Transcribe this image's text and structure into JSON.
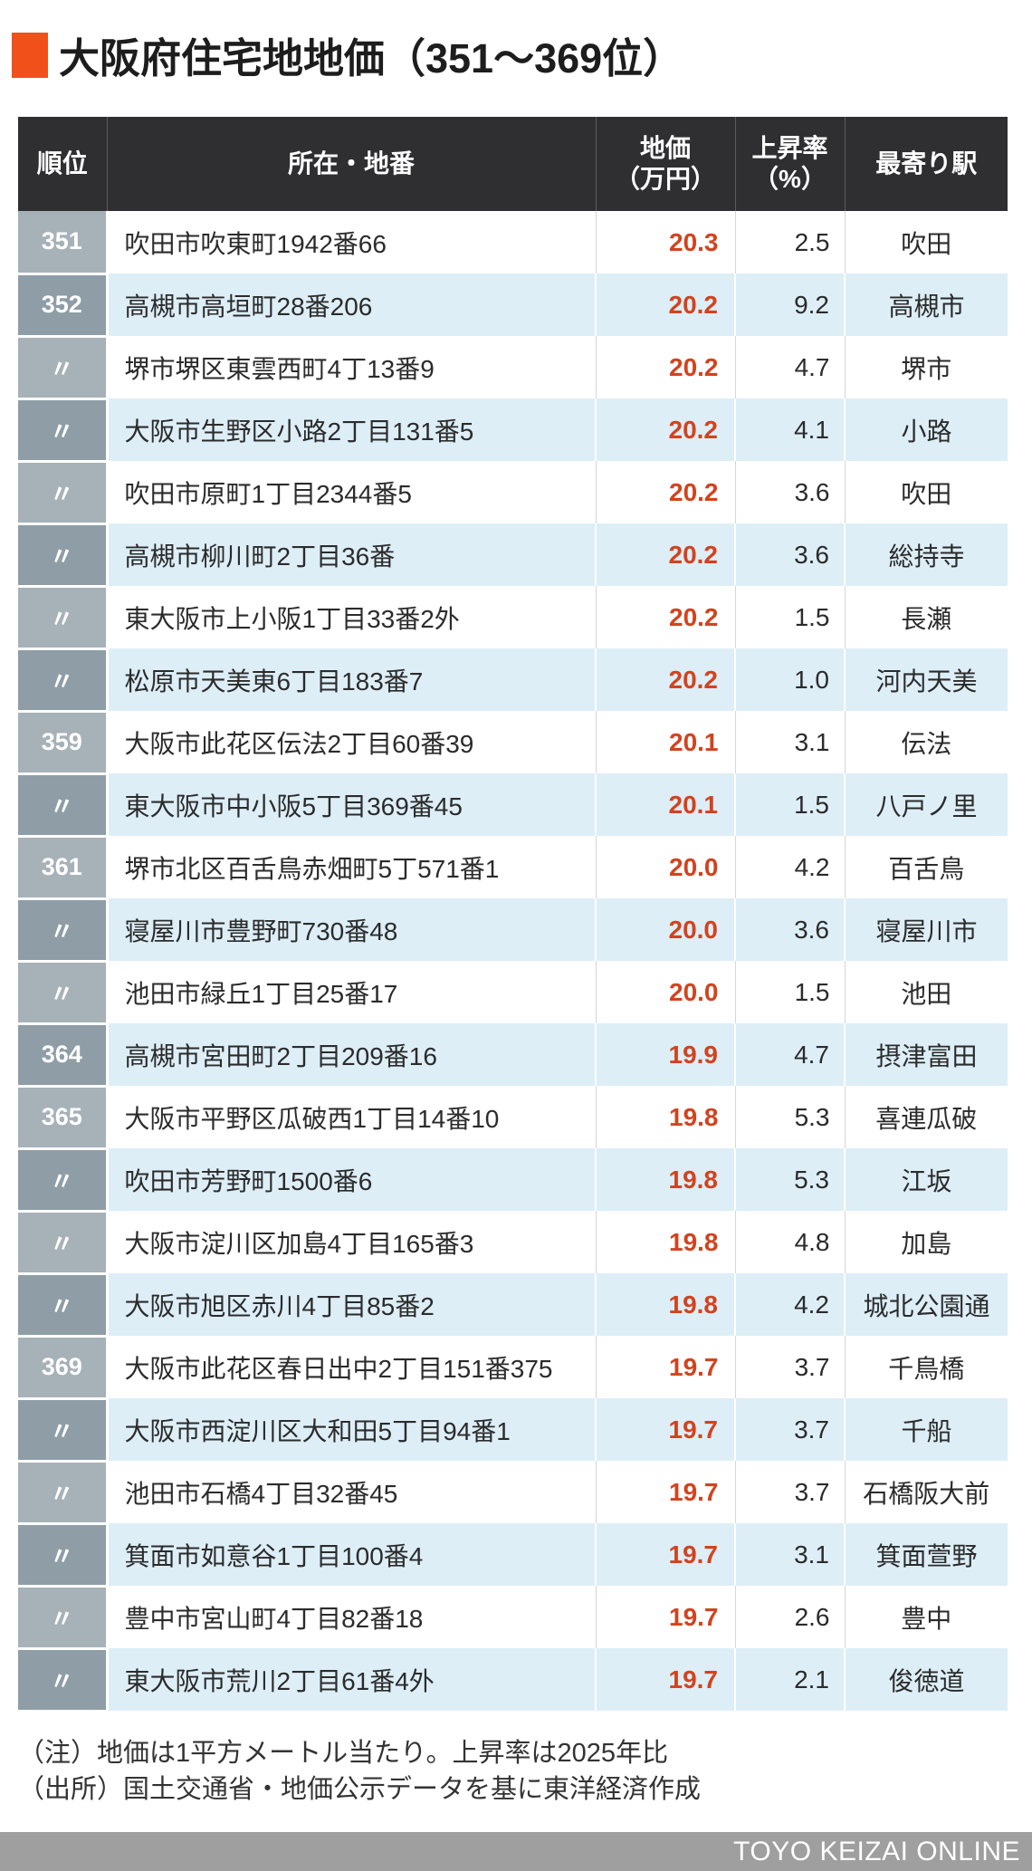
{
  "page": {
    "title": "大阪府住宅地地価（351〜369位）"
  },
  "chart_data": {
    "type": "table",
    "title": "大阪府住宅地地価（351〜369位）",
    "columns": [
      "順位",
      "所在・地番",
      "地価\n（万円）",
      "上昇率\n（%）",
      "最寄り駅"
    ],
    "rows": [
      {
        "rank": "351",
        "location": "吹田市吹東町1942番66",
        "price": "20.3",
        "rate": "2.5",
        "station": "吹田"
      },
      {
        "rank": "352",
        "location": "高槻市高垣町28番206",
        "price": "20.2",
        "rate": "9.2",
        "station": "高槻市"
      },
      {
        "rank": "〃",
        "location": "堺市堺区東雲西町4丁13番9",
        "price": "20.2",
        "rate": "4.7",
        "station": "堺市"
      },
      {
        "rank": "〃",
        "location": "大阪市生野区小路2丁目131番5",
        "price": "20.2",
        "rate": "4.1",
        "station": "小路"
      },
      {
        "rank": "〃",
        "location": "吹田市原町1丁目2344番5",
        "price": "20.2",
        "rate": "3.6",
        "station": "吹田"
      },
      {
        "rank": "〃",
        "location": "高槻市柳川町2丁目36番",
        "price": "20.2",
        "rate": "3.6",
        "station": "総持寺"
      },
      {
        "rank": "〃",
        "location": "東大阪市上小阪1丁目33番2外",
        "price": "20.2",
        "rate": "1.5",
        "station": "長瀬"
      },
      {
        "rank": "〃",
        "location": "松原市天美東6丁目183番7",
        "price": "20.2",
        "rate": "1.0",
        "station": "河内天美"
      },
      {
        "rank": "359",
        "location": "大阪市此花区伝法2丁目60番39",
        "price": "20.1",
        "rate": "3.1",
        "station": "伝法"
      },
      {
        "rank": "〃",
        "location": "東大阪市中小阪5丁目369番45",
        "price": "20.1",
        "rate": "1.5",
        "station": "八戸ノ里"
      },
      {
        "rank": "361",
        "location": "堺市北区百舌鳥赤畑町5丁571番1",
        "price": "20.0",
        "rate": "4.2",
        "station": "百舌鳥"
      },
      {
        "rank": "〃",
        "location": "寝屋川市豊野町730番48",
        "price": "20.0",
        "rate": "3.6",
        "station": "寝屋川市"
      },
      {
        "rank": "〃",
        "location": "池田市緑丘1丁目25番17",
        "price": "20.0",
        "rate": "1.5",
        "station": "池田"
      },
      {
        "rank": "364",
        "location": "高槻市宮田町2丁目209番16",
        "price": "19.9",
        "rate": "4.7",
        "station": "摂津富田"
      },
      {
        "rank": "365",
        "location": "大阪市平野区瓜破西1丁目14番10",
        "price": "19.8",
        "rate": "5.3",
        "station": "喜連瓜破"
      },
      {
        "rank": "〃",
        "location": "吹田市芳野町1500番6",
        "price": "19.8",
        "rate": "5.3",
        "station": "江坂"
      },
      {
        "rank": "〃",
        "location": "大阪市淀川区加島4丁目165番3",
        "price": "19.8",
        "rate": "4.8",
        "station": "加島"
      },
      {
        "rank": "〃",
        "location": "大阪市旭区赤川4丁目85番2",
        "price": "19.8",
        "rate": "4.2",
        "station": "城北公園通"
      },
      {
        "rank": "369",
        "location": "大阪市此花区春日出中2丁目151番375",
        "price": "19.7",
        "rate": "3.7",
        "station": "千鳥橋"
      },
      {
        "rank": "〃",
        "location": "大阪市西淀川区大和田5丁目94番1",
        "price": "19.7",
        "rate": "3.7",
        "station": "千船"
      },
      {
        "rank": "〃",
        "location": "池田市石橋4丁目32番45",
        "price": "19.7",
        "rate": "3.7",
        "station": "石橋阪大前"
      },
      {
        "rank": "〃",
        "location": "箕面市如意谷1丁目100番4",
        "price": "19.7",
        "rate": "3.1",
        "station": "箕面萱野"
      },
      {
        "rank": "〃",
        "location": "豊中市宮山町4丁目82番18",
        "price": "19.7",
        "rate": "2.6",
        "station": "豊中"
      },
      {
        "rank": "〃",
        "location": "東大阪市荒川2丁目61番4外",
        "price": "19.7",
        "rate": "2.1",
        "station": "俊徳道"
      }
    ]
  },
  "notes": {
    "line1": "（注）地価は1平方メートル当たり。上昇率は2025年比",
    "line2": "（出所）国土交通省・地価公示データを基に東洋経済作成"
  },
  "footer": {
    "brand": "TOYO KEIZAI ONLINE"
  },
  "colors": {
    "accent_orange": "#f2501a",
    "price_red": "#d2431e",
    "header_bg": "#2f2f31",
    "rank_light": "#a7b1b8",
    "rank_dark": "#8e9da6",
    "row_alt_blue": "#ddeef7",
    "footer_gray": "#9f9f9f"
  }
}
